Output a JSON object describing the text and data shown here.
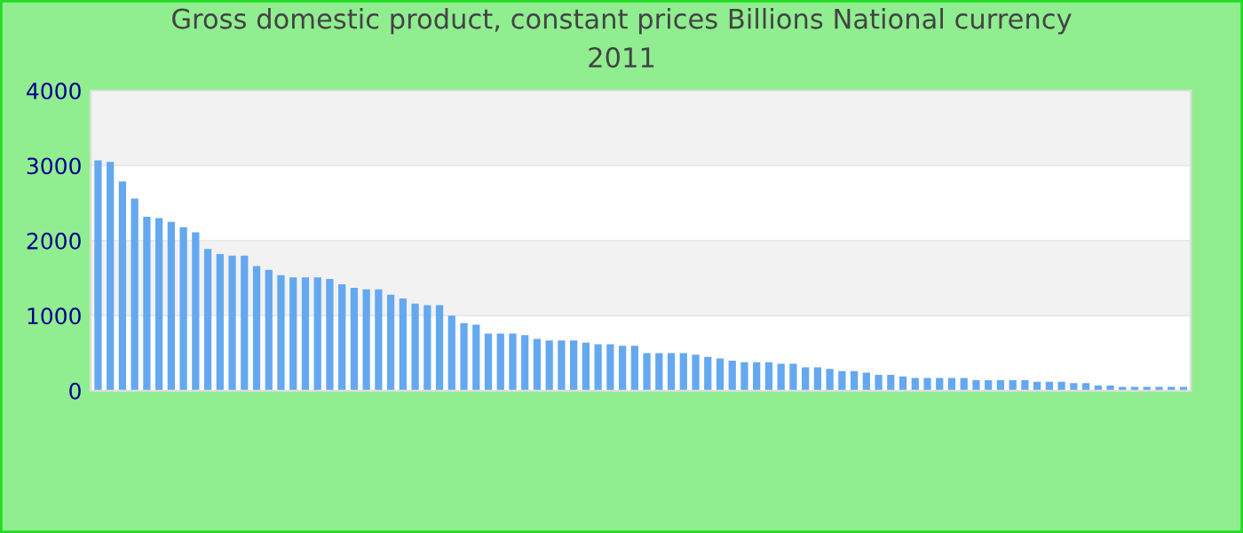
{
  "chart_data": {
    "type": "bar",
    "title": "Gross domestic product, constant prices Billions National currency\n2011",
    "categories": [
      null,
      null,
      null,
      null,
      null,
      null,
      null,
      null,
      null,
      null,
      null,
      null,
      null,
      null,
      null,
      null,
      null,
      null,
      null,
      null,
      null,
      null,
      null,
      null,
      null,
      null,
      null,
      null,
      null,
      null,
      null,
      null,
      null,
      null,
      null,
      null,
      null,
      null,
      null,
      null,
      null,
      null,
      null,
      null,
      null,
      null,
      null,
      null,
      null,
      null,
      null,
      null,
      null,
      null,
      null,
      null,
      null,
      null,
      null,
      null,
      null,
      null,
      null,
      null,
      null,
      null,
      null,
      null,
      null,
      null,
      null,
      null,
      null,
      null,
      null,
      null,
      null,
      null,
      null,
      null,
      null,
      null,
      null,
      null,
      null,
      null,
      null,
      null,
      null,
      null
    ],
    "values": [
      3070,
      3050,
      2790,
      2560,
      2320,
      2300,
      2250,
      2180,
      2110,
      1890,
      1820,
      1800,
      1800,
      1660,
      1610,
      1540,
      1510,
      1510,
      1510,
      1490,
      1420,
      1370,
      1350,
      1350,
      1280,
      1230,
      1160,
      1140,
      1140,
      1000,
      900,
      880,
      760,
      760,
      760,
      740,
      690,
      670,
      670,
      670,
      640,
      620,
      620,
      600,
      600,
      500,
      500,
      500,
      500,
      480,
      450,
      430,
      400,
      380,
      380,
      380,
      360,
      360,
      310,
      310,
      290,
      260,
      260,
      240,
      210,
      210,
      190,
      170,
      170,
      170,
      170,
      170,
      140,
      140,
      140,
      140,
      140,
      120,
      120,
      120,
      100,
      100,
      70,
      70,
      50,
      50,
      50,
      50,
      50,
      50
    ],
    "color": "#64a8f0",
    "ylim": [
      0,
      4000
    ],
    "yticks": [
      0,
      1000,
      2000,
      3000,
      4000
    ],
    "grid": "y",
    "tick_labels": "y",
    "legend": false
  }
}
